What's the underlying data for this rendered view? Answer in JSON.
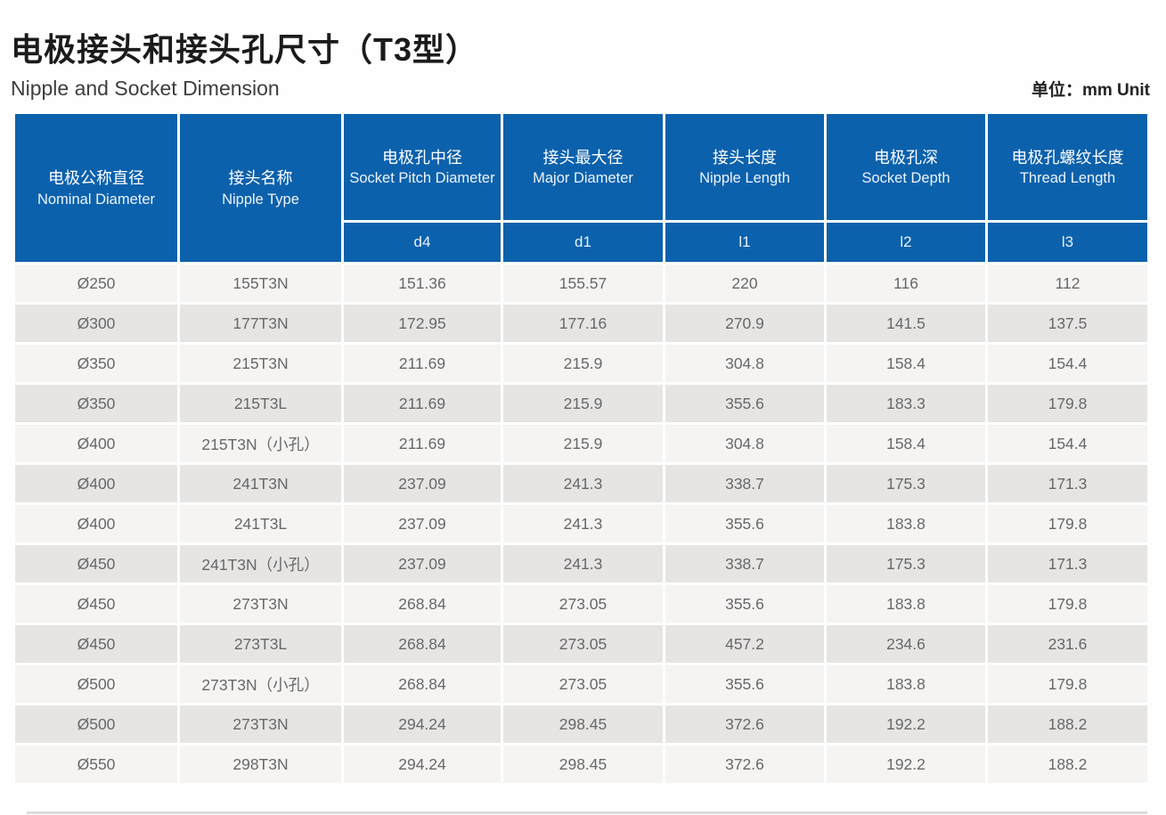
{
  "page": {
    "title_cn": "电极接头和接头孔尺寸（T3型）",
    "subtitle_en": "Nipple and Socket Dimension",
    "unit_label": "单位：mm Unit"
  },
  "colors": {
    "header_blue": "#0c61ac",
    "row_light": "#f5f4f2",
    "row_dark": "#e6e5e3",
    "cell_text": "#68686a"
  },
  "table": {
    "columns": [
      {
        "cn": "电极公称直径",
        "en": "Nominal Diameter",
        "symbol": ""
      },
      {
        "cn": "接头名称",
        "en": "Nipple Type",
        "symbol": ""
      },
      {
        "cn": "电极孔中径",
        "en": "Socket Pitch Diameter",
        "symbol": "d4"
      },
      {
        "cn": "接头最大径",
        "en": "Major Diameter",
        "symbol": "d1"
      },
      {
        "cn": "接头长度",
        "en": "Nipple Length",
        "symbol": "l1"
      },
      {
        "cn": "电极孔深",
        "en": "Socket Depth",
        "symbol": "l2"
      },
      {
        "cn": "电极孔螺纹长度",
        "en": "Thread Length",
        "symbol": "l3"
      }
    ],
    "rows": [
      [
        "Ø250",
        "155T3N",
        "151.36",
        "155.57",
        "220",
        "116",
        "112"
      ],
      [
        "Ø300",
        "177T3N",
        "172.95",
        "177.16",
        "270.9",
        "141.5",
        "137.5"
      ],
      [
        "Ø350",
        "215T3N",
        "211.69",
        "215.9",
        "304.8",
        "158.4",
        "154.4"
      ],
      [
        "Ø350",
        "215T3L",
        "211.69",
        "215.9",
        "355.6",
        "183.3",
        "179.8"
      ],
      [
        "Ø400",
        "215T3N（小孔）",
        "211.69",
        "215.9",
        "304.8",
        "158.4",
        "154.4"
      ],
      [
        "Ø400",
        "241T3N",
        "237.09",
        "241.3",
        "338.7",
        "175.3",
        "171.3"
      ],
      [
        "Ø400",
        "241T3L",
        "237.09",
        "241.3",
        "355.6",
        "183.8",
        "179.8"
      ],
      [
        "Ø450",
        "241T3N（小孔）",
        "237.09",
        "241.3",
        "338.7",
        "175.3",
        "171.3"
      ],
      [
        "Ø450",
        "273T3N",
        "268.84",
        "273.05",
        "355.6",
        "183.8",
        "179.8"
      ],
      [
        "Ø450",
        "273T3L",
        "268.84",
        "273.05",
        "457.2",
        "234.6",
        "231.6"
      ],
      [
        "Ø500",
        "273T3N（小孔）",
        "268.84",
        "273.05",
        "355.6",
        "183.8",
        "179.8"
      ],
      [
        "Ø500",
        "273T3N",
        "294.24",
        "298.45",
        "372.6",
        "192.2",
        "188.2"
      ],
      [
        "Ø550",
        "298T3N",
        "294.24",
        "298.45",
        "372.6",
        "192.2",
        "188.2"
      ]
    ]
  }
}
